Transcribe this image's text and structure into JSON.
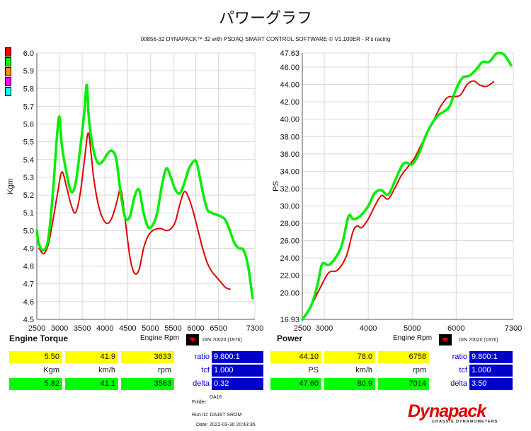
{
  "title": "パワーグラフ",
  "subtitle": "00856-32 DYNAPACK™ 32 with PSDAQ SMART CONTROL SOFTWARE © V1.100ER - R's racing",
  "legend_swatch_colors": [
    "#ff0000",
    "#00ff00",
    "#ff8800",
    "#ff00ff",
    "#00ffff"
  ],
  "colors": {
    "run1": "#e00000",
    "run2": "#00ee00",
    "panel_blue": "#0000cc",
    "yellow": "#ffff00",
    "green": "#00ff00"
  },
  "chart_data": [
    {
      "type": "line",
      "ylabel": "Kgm",
      "xlabel": "",
      "xlim": [
        2500,
        7300
      ],
      "ylim": [
        4.5,
        6.0
      ],
      "x_ticks": [
        "2500",
        "3000",
        "3500",
        "4000",
        "4500",
        "5000",
        "5500",
        "6000",
        "6500",
        "7300"
      ],
      "y_ticks": [
        "6.0",
        "5.9",
        "5.8",
        "5.7",
        "5.6",
        "5.5",
        "5.4",
        "5.3",
        "5.2",
        "5.1",
        "5.0",
        "4.9",
        "4.8",
        "4.7",
        "4.6",
        "4.5"
      ],
      "series": [
        {
          "color": "#e00000",
          "x": [
            2550,
            2650,
            2750,
            2850,
            2950,
            3050,
            3150,
            3250,
            3350,
            3450,
            3550,
            3630,
            3700,
            3750,
            3850,
            3950,
            4050,
            4150,
            4250,
            4350,
            4450,
            4550,
            4650,
            4750,
            4850,
            4950,
            5050,
            5150,
            5250,
            5350,
            5450,
            5550,
            5650,
            5750,
            5850,
            5950,
            6050,
            6150,
            6250,
            6350,
            6450,
            6550,
            6650,
            6750
          ],
          "y": [
            4.9,
            4.87,
            4.92,
            5.05,
            5.2,
            5.33,
            5.25,
            5.15,
            5.1,
            5.2,
            5.4,
            5.55,
            5.42,
            5.3,
            5.15,
            5.07,
            5.04,
            5.07,
            5.15,
            5.23,
            5.05,
            4.85,
            4.76,
            4.78,
            4.9,
            4.97,
            5.0,
            5.01,
            5.01,
            5.0,
            5.01,
            5.05,
            5.15,
            5.22,
            5.18,
            5.1,
            5.0,
            4.9,
            4.82,
            4.77,
            4.74,
            4.71,
            4.68,
            4.67
          ]
        },
        {
          "color": "#00ee00",
          "x": [
            2500,
            2550,
            2650,
            2750,
            2850,
            2950,
            3000,
            3050,
            3150,
            3250,
            3350,
            3450,
            3550,
            3600,
            3650,
            3750,
            3850,
            3950,
            4050,
            4150,
            4250,
            4350,
            4450,
            4550,
            4650,
            4750,
            4850,
            4950,
            5050,
            5150,
            5250,
            5350,
            5450,
            5550,
            5650,
            5750,
            5850,
            5950,
            6000,
            6050,
            6150,
            6250,
            6350,
            6450,
            6550,
            6650,
            6750,
            6850,
            6950,
            7050,
            7150,
            7250
          ],
          "y": [
            5.0,
            4.92,
            4.89,
            4.95,
            5.2,
            5.55,
            5.64,
            5.48,
            5.33,
            5.22,
            5.26,
            5.45,
            5.68,
            5.82,
            5.62,
            5.45,
            5.38,
            5.39,
            5.43,
            5.45,
            5.4,
            5.2,
            5.07,
            5.08,
            5.19,
            5.23,
            5.1,
            5.02,
            5.03,
            5.1,
            5.25,
            5.35,
            5.3,
            5.23,
            5.21,
            5.27,
            5.35,
            5.39,
            5.39,
            5.35,
            5.22,
            5.12,
            5.1,
            5.09,
            5.08,
            5.06,
            5.0,
            4.93,
            4.9,
            4.89,
            4.8,
            4.62
          ]
        }
      ]
    },
    {
      "type": "line",
      "ylabel": "PS",
      "xlabel": "",
      "xlim": [
        2500,
        7300
      ],
      "ylim": [
        16.93,
        47.63
      ],
      "x_ticks": [
        "2500",
        "3000",
        "4000",
        "5000",
        "6000",
        "7300"
      ],
      "y_ticks": [
        "47.63",
        "46.00",
        "44.00",
        "42.00",
        "40.00",
        "38.00",
        "36.00",
        "34.00",
        "32.00",
        "30.00",
        "28.00",
        "26.00",
        "24.00",
        "22.00",
        "20.00",
        "16.93"
      ],
      "series": [
        {
          "color": "#e00000",
          "x": [
            2500,
            2700,
            2900,
            3100,
            3300,
            3500,
            3650,
            3750,
            3850,
            4000,
            4150,
            4300,
            4450,
            4600,
            4750,
            4900,
            5050,
            5200,
            5350,
            5500,
            5650,
            5800,
            5950,
            6100,
            6250,
            6400,
            6550,
            6700,
            6850
          ],
          "y": [
            16.9,
            18.5,
            20.5,
            22.3,
            22.6,
            24.2,
            27.0,
            27.7,
            27.5,
            28.5,
            30.0,
            31.2,
            30.8,
            32.0,
            33.5,
            34.5,
            35.5,
            37.0,
            38.5,
            40.0,
            41.5,
            42.5,
            42.6,
            42.8,
            44.0,
            44.4,
            43.9,
            43.8,
            44.3
          ]
        },
        {
          "color": "#00ee00",
          "x": [
            2500,
            2700,
            2850,
            2950,
            3100,
            3250,
            3400,
            3550,
            3650,
            3750,
            3850,
            4000,
            4150,
            4300,
            4450,
            4600,
            4750,
            4850,
            5000,
            5150,
            5300,
            5450,
            5600,
            5700,
            5850,
            6000,
            6150,
            6300,
            6450,
            6600,
            6750,
            6900,
            7000,
            7100,
            7250
          ],
          "y": [
            16.9,
            18.5,
            21.0,
            23.3,
            23.2,
            24.0,
            25.5,
            28.8,
            28.5,
            28.6,
            29.0,
            30.0,
            31.5,
            31.8,
            31.3,
            32.8,
            34.5,
            35.0,
            34.8,
            36.0,
            38.0,
            39.5,
            40.5,
            40.8,
            41.5,
            43.5,
            44.8,
            45.0,
            45.7,
            46.6,
            46.6,
            47.5,
            47.6,
            47.4,
            46.2
          ]
        }
      ]
    }
  ],
  "torque_panel": {
    "header": "Engine Torque",
    "rpm_header": "Engine Rpm",
    "din": "DIN 70020 (1976)",
    "row1": [
      "5.50",
      "41.9",
      "3633"
    ],
    "units": [
      "Kgm",
      "km/h",
      "rpm"
    ],
    "row3": [
      "5.82",
      "41.1",
      "3563"
    ],
    "params": [
      {
        "label": "ratio",
        "value": "9.800:1"
      },
      {
        "label": "tcf",
        "value": "1.000"
      },
      {
        "label": "delta",
        "value": "0.32"
      }
    ]
  },
  "power_panel": {
    "header": "Power",
    "rpm_header": "Engine Rpm",
    "din": "DIN 70020 (1976)",
    "row1": [
      "44.10",
      "78.0",
      "6758"
    ],
    "units": [
      "PS",
      "km/h",
      "rpm"
    ],
    "row3": [
      "47.60",
      "80.9",
      "7014"
    ],
    "params": [
      {
        "label": "ratio",
        "value": "9.800:1"
      },
      {
        "label": "tcf",
        "value": "1.000"
      },
      {
        "label": "delta",
        "value": "3.50"
      }
    ]
  },
  "footer": {
    "folder_label": "Folder:",
    "folder_value": "DA16",
    "run_id": "Run ID: DA16T  SROM",
    "date": "Date: 2022-03-30 20:43:35"
  },
  "logo": {
    "text": "Dynapack",
    "tagline": "CHASSIS DYNAMOMETERS"
  }
}
